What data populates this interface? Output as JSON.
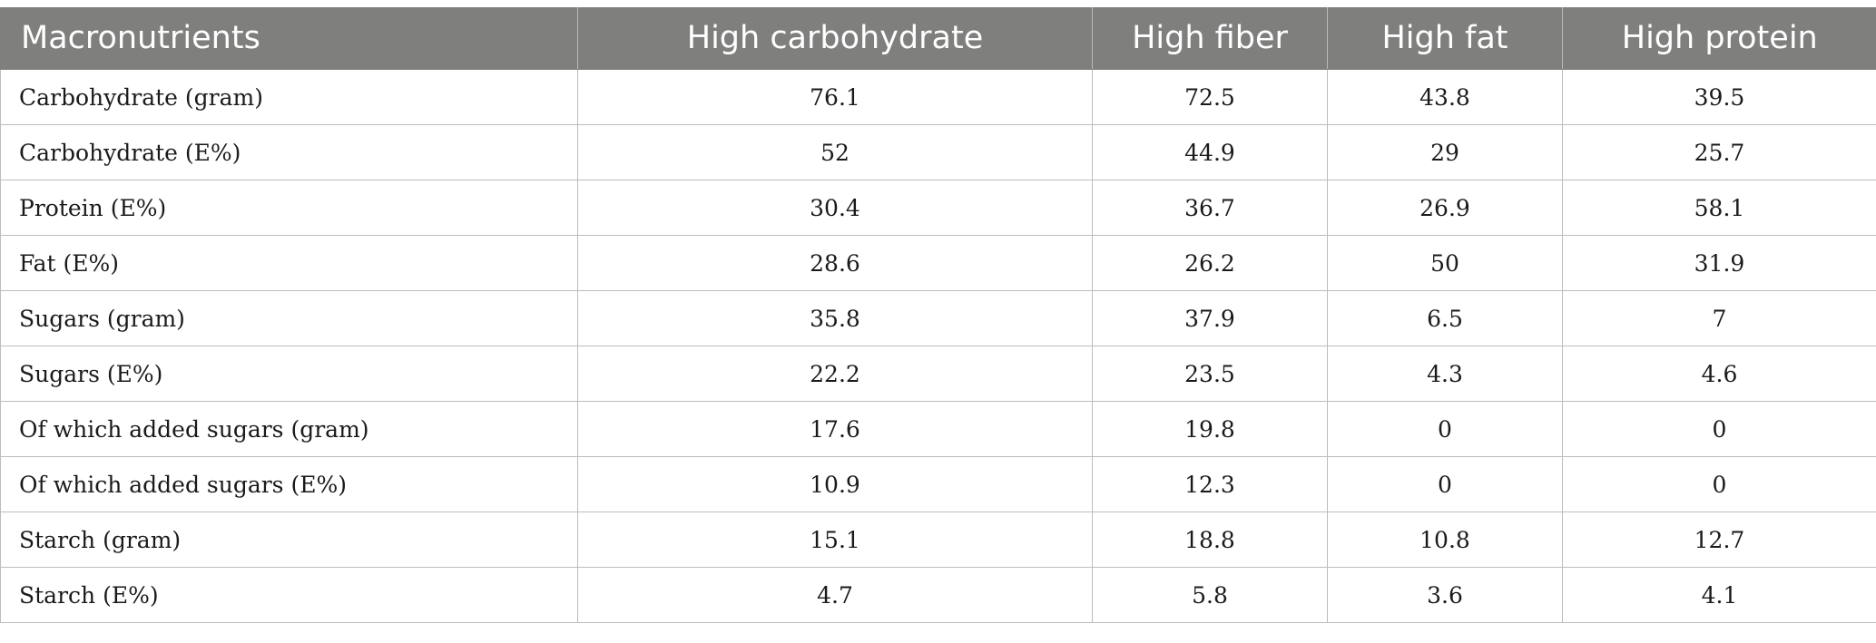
{
  "table": {
    "headers": [
      "Macronutrients",
      "High carbohydrate",
      "High fiber",
      "High fat",
      "High protein"
    ],
    "rows": [
      [
        "Carbohydrate (gram)",
        "76.1",
        "72.5",
        "43.8",
        "39.5"
      ],
      [
        "Carbohydrate (E%)",
        "52",
        "44.9",
        "29",
        "25.7"
      ],
      [
        "Protein (E%)",
        "30.4",
        "36.7",
        "26.9",
        "58.1"
      ],
      [
        "Fat (E%)",
        "28.6",
        "26.2",
        "50",
        "31.9"
      ],
      [
        "Sugars (gram)",
        "35.8",
        "37.9",
        "6.5",
        "7"
      ],
      [
        "Sugars (E%)",
        "22.2",
        "23.5",
        "4.3",
        "4.6"
      ],
      [
        "Of which added sugars (gram)",
        "17.6",
        "19.8",
        "0",
        "0"
      ],
      [
        "Of which added sugars (E%)",
        "10.9",
        "12.3",
        "0",
        "0"
      ],
      [
        "Starch (gram)",
        "15.1",
        "18.8",
        "10.8",
        "12.7"
      ],
      [
        "Starch (E%)",
        "4.7",
        "5.8",
        "3.6",
        "4.1"
      ]
    ]
  },
  "colors": {
    "header_background": "#7f7f7e",
    "header_text": "#ffffff",
    "grid_line": "#bdbdbd"
  }
}
